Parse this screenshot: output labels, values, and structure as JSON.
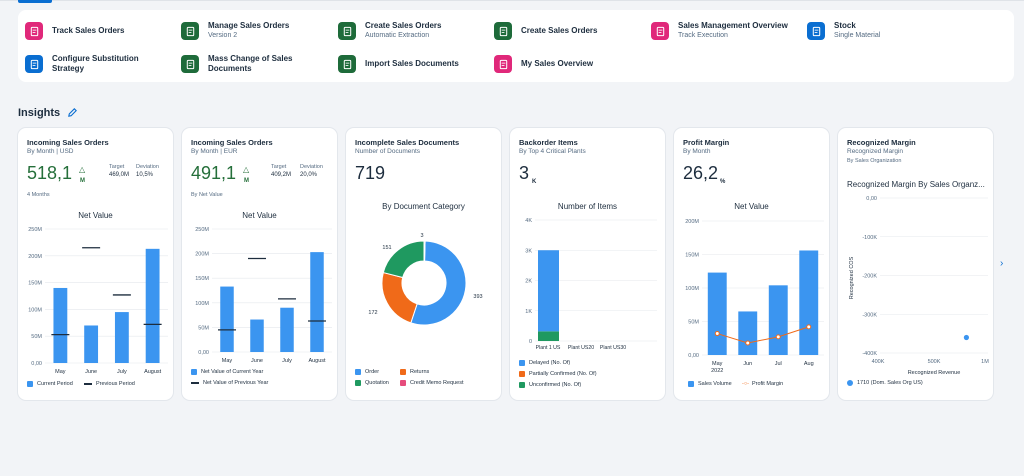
{
  "apps": [
    {
      "title": "Track Sales Orders",
      "subtitle": "",
      "icon": "track-orders-icon",
      "color": "#e0287a"
    },
    {
      "title": "Manage Sales Orders",
      "subtitle": "Version 2",
      "icon": "manage-orders-icon",
      "color": "#1e6b3a"
    },
    {
      "title": "Create Sales Orders",
      "subtitle": "Automatic Extraction",
      "icon": "pdf-icon",
      "color": "#1e6b3a"
    },
    {
      "title": "Create Sales Orders",
      "subtitle": "",
      "icon": "create-order-icon",
      "color": "#1e6b3a"
    },
    {
      "title": "Sales Management Overview",
      "subtitle": "Track Execution",
      "icon": "overview-icon",
      "color": "#e0287a"
    },
    {
      "title": "Stock",
      "subtitle": "Single Material",
      "icon": "stock-icon",
      "color": "#0a6ed1"
    },
    {
      "title": "Configure Substitution Strategy",
      "subtitle": "",
      "icon": "substitution-icon",
      "color": "#0a6ed1"
    },
    {
      "title": "Mass Change of Sales Documents",
      "subtitle": "",
      "icon": "mass-change-icon",
      "color": "#1e6b3a"
    },
    {
      "title": "Import Sales Documents",
      "subtitle": "",
      "icon": "import-icon",
      "color": "#1e6b3a"
    },
    {
      "title": "My Sales Overview",
      "subtitle": "",
      "icon": "my-overview-icon",
      "color": "#e0287a"
    }
  ],
  "insights": {
    "title": "Insights",
    "edit_icon": "pencil-icon"
  },
  "cards": {
    "c1": {
      "title": "Incoming Sales Orders",
      "subtitle": "By Month | USD",
      "kpi": "518,1",
      "unit": "M",
      "target_label": "Target",
      "target_value": "469,0M",
      "deviation_label": "Deviation",
      "deviation_value": "10,5%",
      "note": "4 Months",
      "legend": [
        "Current Period",
        "Previous Period"
      ]
    },
    "c2": {
      "title": "Incoming Sales Orders",
      "subtitle": "By Month | EUR",
      "kpi": "491,1",
      "unit": "M",
      "target_label": "Target",
      "target_value": "409,2M",
      "deviation_label": "Deviation",
      "deviation_value": "20,0%",
      "note": "By Net Value",
      "legend": [
        "Net Value of Current Year",
        "Net Value of Previous Year"
      ]
    },
    "c3": {
      "title": "Incomplete Sales Documents",
      "subtitle": "Number of Documents",
      "kpi": "719",
      "legend": [
        "Order",
        "Returns",
        "Quotation",
        "Credit Memo Request"
      ]
    },
    "c4": {
      "title": "Backorder Items",
      "subtitle": "By Top 4 Critical Plants",
      "kpi": "3",
      "unit": "K",
      "legend": [
        "Delayed (No. Of)",
        "Partially Confirmed (No. Of)",
        "Unconfirmed (No. Of)"
      ]
    },
    "c5": {
      "title": "Profit Margin",
      "subtitle": "By Month",
      "kpi": "26,2",
      "unit": "%",
      "legend": [
        "Sales Volume",
        "Profit Margin"
      ]
    },
    "c6": {
      "title": "Recognized Margin",
      "subtitle": "Recognized Margin",
      "subtitle2": "By Sales Organization",
      "legend": [
        "1710 (Dom. Sales Org US)"
      ]
    }
  },
  "colors": {
    "blue": "#3b95f0",
    "orange": "#f06a19",
    "green": "#1f9960",
    "pink": "#e64c7c",
    "red": "#d9252c",
    "dark": "#1d2d3e"
  },
  "chart_data": [
    {
      "type": "bar",
      "title": "Net Value",
      "categories": [
        "May",
        "June",
        "July",
        "August"
      ],
      "series": [
        {
          "name": "Current Period",
          "values": [
            140,
            70,
            95,
            213
          ]
        },
        {
          "name": "Previous Period",
          "values": [
            53,
            215,
            127,
            72
          ]
        }
      ],
      "ylim": [
        0,
        250
      ],
      "yticks": [
        "0,00",
        "50M",
        "100M",
        "150M",
        "200M",
        "250M"
      ]
    },
    {
      "type": "bar",
      "title": "Net Value",
      "categories": [
        "May",
        "June",
        "July",
        "August"
      ],
      "series": [
        {
          "name": "Net Value of Current Year",
          "values": [
            133,
            66,
            90,
            203
          ]
        },
        {
          "name": "Net Value of Previous Year",
          "values": [
            45,
            190,
            108,
            63
          ]
        }
      ],
      "ylim": [
        0,
        250
      ],
      "yticks": [
        "0,00",
        "50M",
        "100M",
        "150M",
        "200M",
        "250M"
      ]
    },
    {
      "type": "pie",
      "title": "By Document Category",
      "slices": [
        {
          "label": "Order",
          "value": 393
        },
        {
          "label": "Returns",
          "value": 172
        },
        {
          "label": "Quotation",
          "value": 151
        },
        {
          "label": "Credit Memo Request",
          "value": 3
        }
      ]
    },
    {
      "type": "bar",
      "title": "Number of Items",
      "categories": [
        "Plant 1 US",
        "Plant US20",
        "Plant US30"
      ],
      "series": [
        {
          "name": "Delayed (No. Of)",
          "values": [
            2680,
            0,
            0
          ]
        },
        {
          "name": "Partially Confirmed (No. Of)",
          "values": [
            0,
            0,
            0
          ]
        },
        {
          "name": "Unconfirmed (No. Of)",
          "values": [
            320,
            0,
            0
          ]
        }
      ],
      "ylim": [
        0,
        4000
      ],
      "yticks": [
        "0",
        "1K",
        "2K",
        "3K",
        "4K"
      ]
    },
    {
      "type": "bar",
      "title": "Net Value",
      "categories": [
        "May\n2022",
        "Jun",
        "Jul",
        "Aug"
      ],
      "series": [
        {
          "name": "Sales Volume",
          "values": [
            123,
            65,
            104,
            156
          ]
        },
        {
          "name": "Profit Margin",
          "values": [
            32,
            18,
            27,
            42
          ]
        }
      ],
      "ylim": [
        0,
        200
      ],
      "yticks": [
        "0,00",
        "50M",
        "100M",
        "150M",
        "200M"
      ]
    },
    {
      "type": "scatter",
      "title": "Recognized Margin By Sales Organz...",
      "xlabel": "Recognized Revenue",
      "ylabel": "Recognized COS",
      "xticks": [
        "400K",
        "500K",
        "1M"
      ],
      "yticks": [
        "0,00",
        "-100K",
        "-200K",
        "-300K",
        "-400K"
      ],
      "points": [
        {
          "x": 880,
          "y": -360
        }
      ]
    }
  ],
  "nav": {
    "next_icon": "chevron-right-icon",
    "next_label": "›"
  }
}
